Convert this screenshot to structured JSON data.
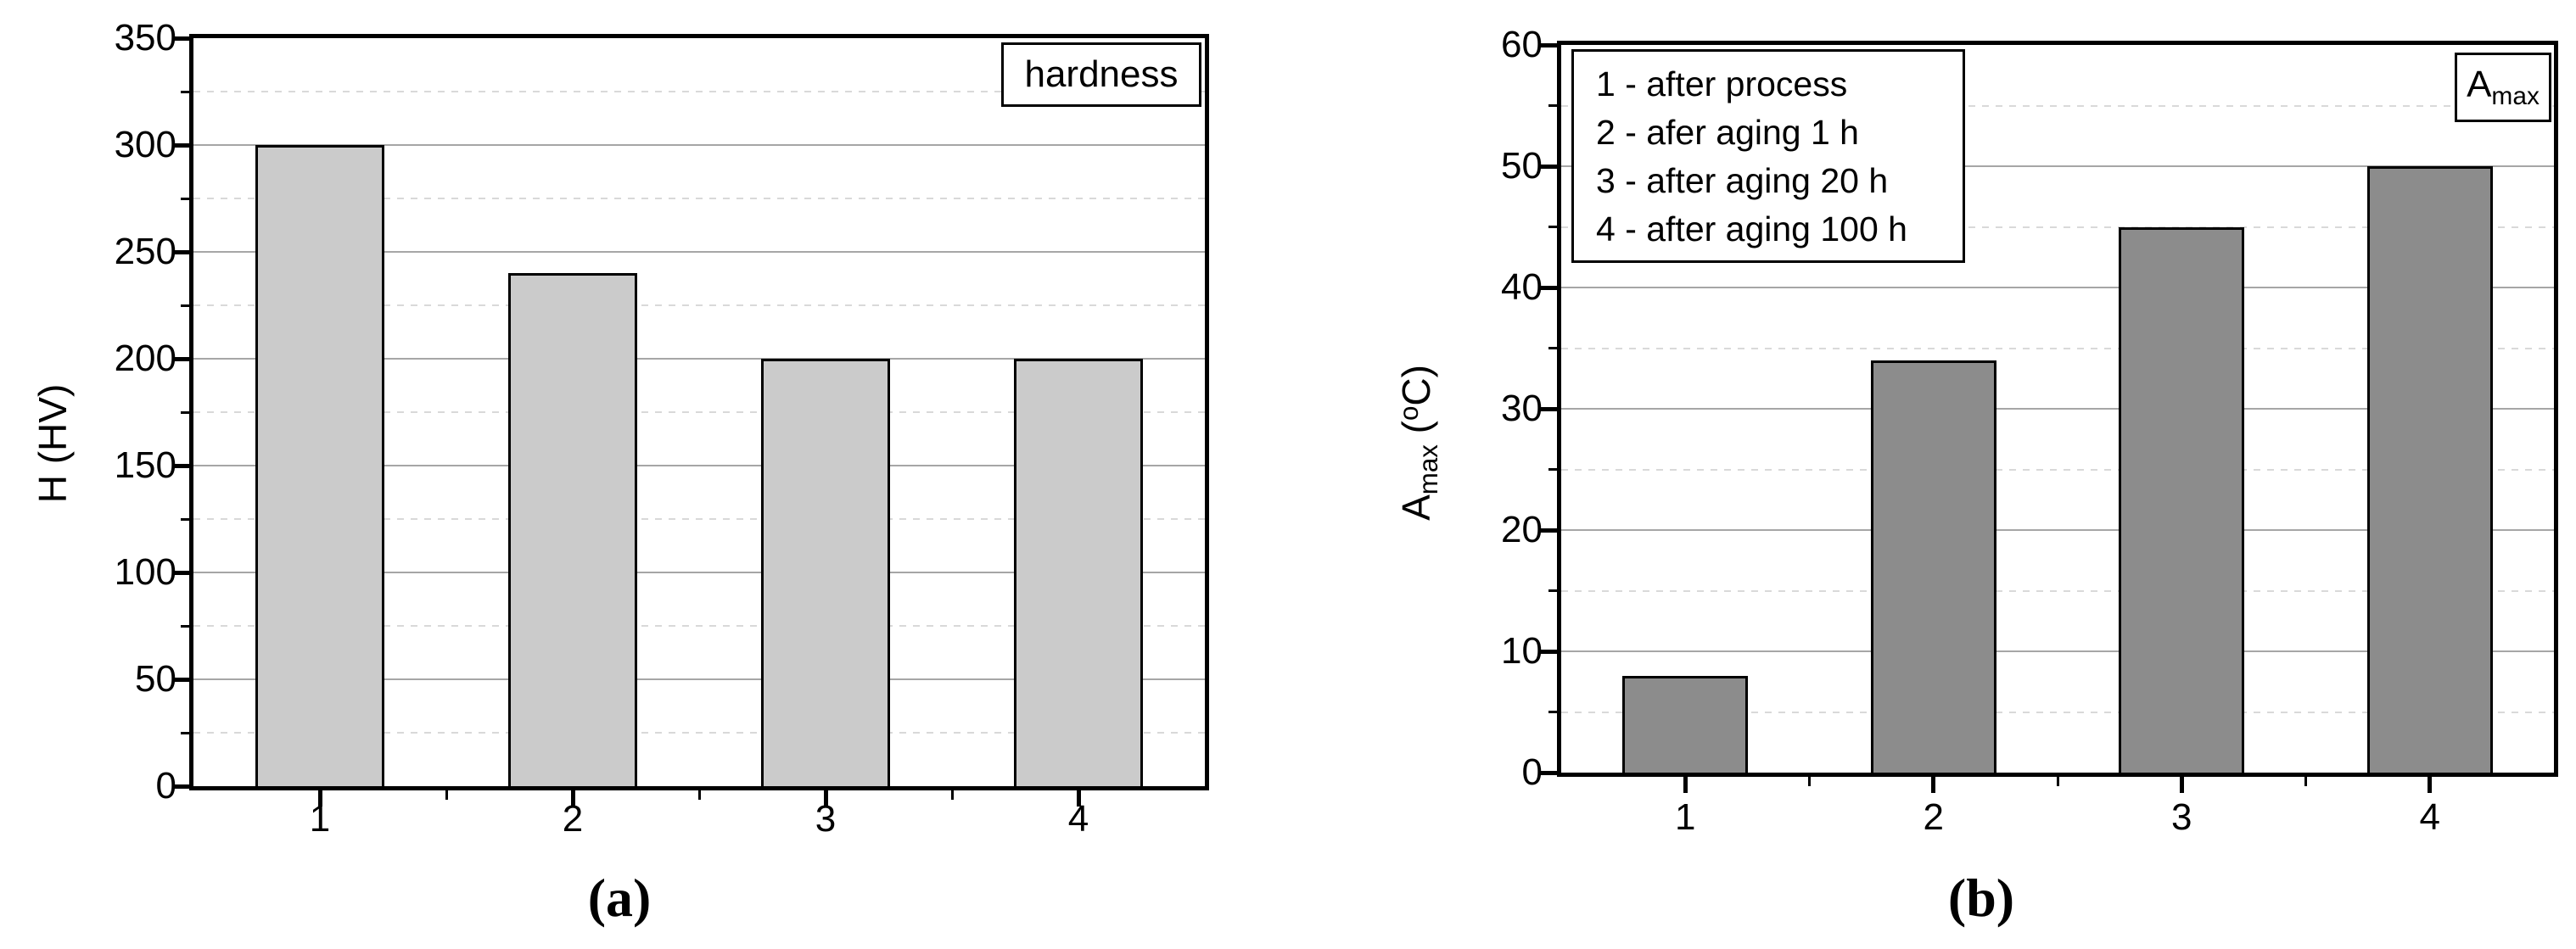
{
  "chart_data": [
    {
      "type": "bar",
      "panel": "a",
      "categories": [
        "1",
        "2",
        "3",
        "4"
      ],
      "values": [
        300,
        240,
        200,
        200
      ],
      "ylabel": "H (HV)",
      "xlabel": "",
      "ylim": [
        0,
        350
      ],
      "y_major_step": 50,
      "y_minor_step": 25,
      "legend": [
        "hardness"
      ],
      "legend_position": "top-right",
      "grid": "major horizontal solid, minor horizontal dotted",
      "bar_color": "#cbcbcb",
      "bar_edge_color": "#000000",
      "caption": "(a)"
    },
    {
      "type": "bar",
      "panel": "b",
      "categories": [
        "1",
        "2",
        "3",
        "4"
      ],
      "values": [
        8,
        34,
        45,
        50
      ],
      "ylabel": "Amax (oC)",
      "xlabel": "",
      "ylim": [
        0,
        60
      ],
      "y_major_step": 10,
      "y_minor_step": 5,
      "legend": [
        "Amax"
      ],
      "legend_position": "top-right",
      "annotation_lines": [
        "1 - after process",
        "2 - afer aging 1 h",
        "3 - after aging 20 h",
        "4 - after aging 100 h"
      ],
      "grid": "major horizontal solid, minor horizontal dotted",
      "bar_color": "#8c8c8c",
      "bar_edge_color": "#000000",
      "caption": "(b)"
    }
  ],
  "panels": {
    "a": {
      "caption": "(a)",
      "legend_label": "hardness",
      "y_title": "H (HV)"
    },
    "b": {
      "caption": "(b)",
      "legend_main": "A",
      "legend_sub": "max",
      "y_title_main": "A",
      "y_title_sub": "max",
      "y_title_unit_pre": " (",
      "y_title_unit_sup": "o",
      "y_title_unit_post": "C)",
      "note_lines": [
        "1 - after process",
        "2 - afer aging 1 h",
        "3 - after aging 20 h",
        "4 - after aging 100 h"
      ]
    }
  },
  "colors": {
    "background": "#ffffff",
    "axis_frame": "#000000",
    "grid_major": "#a6a6a6",
    "grid_minor": "#d9d9d9",
    "text": "#000000",
    "bar_fill_a": "#cbcbcb",
    "bar_fill_b": "#8c8c8c"
  }
}
